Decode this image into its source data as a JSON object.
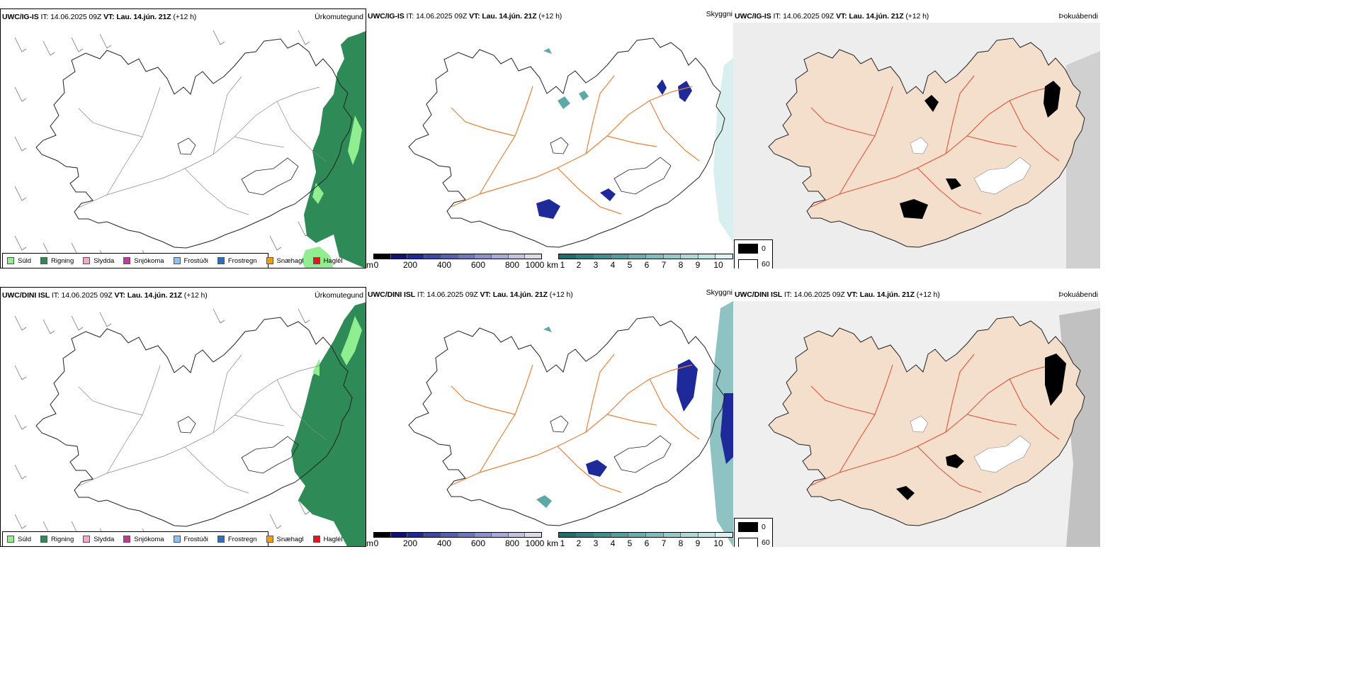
{
  "header": {
    "it_label": "IT:",
    "init_time": "14.06.2025 09Z",
    "vt_label": "VT:",
    "valid_time": "Lau. 14.jún. 21Z",
    "lead": "(+12 h)"
  },
  "rows": [
    {
      "model": "UWC/IG-IS"
    },
    {
      "model": "UWC/DINI ISL"
    }
  ],
  "panel_titles": {
    "precip_type": "Úrkomutegund",
    "cloud_base": "Skyggni",
    "fog": "Þokuábendi"
  },
  "precip_legend": [
    {
      "label": "Súld",
      "color": "#90EE90"
    },
    {
      "label": "Rigning",
      "color": "#2E8B57"
    },
    {
      "label": "Slydda",
      "color": "#F4A7C8"
    },
    {
      "label": "Snjókoma",
      "color": "#C0399B"
    },
    {
      "label": "Frostúði",
      "color": "#8EC1F0"
    },
    {
      "label": "Frostregn",
      "color": "#2F6FBF"
    },
    {
      "label": "Snæhagl",
      "color": "#F39C12"
    },
    {
      "label": "Haglél",
      "color": "#E8141B"
    }
  ],
  "height_bar": {
    "unit": "m",
    "ticks": [
      "0",
      "200",
      "400",
      "600",
      "800",
      "1000"
    ],
    "colors": [
      "#000000",
      "#101078",
      "#1E2A9A",
      "#3A48A8",
      "#5560B0",
      "#7078BC",
      "#8C92C8",
      "#A6AAD4",
      "#C0C2E0",
      "#DADCEC"
    ]
  },
  "vis_bar": {
    "unit": "km",
    "ticks": [
      "1",
      "2",
      "3",
      "4",
      "5",
      "6",
      "7",
      "8",
      "9",
      "10"
    ],
    "colors": [
      "#1E6E6E",
      "#2F7F7F",
      "#418F8F",
      "#559E9E",
      "#6AADAD",
      "#80BCBC",
      "#96CACA",
      "#ADD8D8",
      "#C4E5E5",
      "#DCF1F1"
    ]
  },
  "fog_legend": [
    {
      "label": "0",
      "color": "#000000"
    },
    {
      "label": "60",
      "color": "#ffffff"
    }
  ]
}
